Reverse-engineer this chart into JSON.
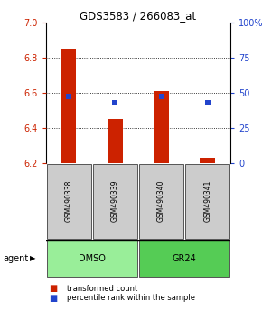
{
  "title": "GDS3583 / 266083_at",
  "samples": [
    "GSM490338",
    "GSM490339",
    "GSM490340",
    "GSM490341"
  ],
  "bar_bottoms": [
    6.2,
    6.2,
    6.2,
    6.2
  ],
  "bar_tops": [
    6.85,
    6.45,
    6.61,
    6.23
  ],
  "bar_color": "#cc2200",
  "bar_width": 0.32,
  "percentile_values": [
    47,
    43,
    47,
    43
  ],
  "percentile_color": "#2244cc",
  "ylim_left": [
    6.2,
    7.0
  ],
  "ylim_right": [
    0,
    100
  ],
  "yticks_left": [
    6.2,
    6.4,
    6.6,
    6.8,
    7.0
  ],
  "yticks_right": [
    0,
    25,
    50,
    75,
    100
  ],
  "ytick_labels_right": [
    "0",
    "25",
    "50",
    "75",
    "100%"
  ],
  "groups": [
    {
      "label": "DMSO",
      "indices": [
        0,
        1
      ],
      "color": "#99ee99"
    },
    {
      "label": "GR24",
      "indices": [
        2,
        3
      ],
      "color": "#55cc55"
    }
  ],
  "group_label": "agent",
  "legend_items": [
    {
      "label": "transformed count",
      "color": "#cc2200"
    },
    {
      "label": "percentile rank within the sample",
      "color": "#2244cc"
    }
  ],
  "sample_box_color": "#cccccc",
  "tick_color_left": "#cc2200",
  "tick_color_right": "#2244cc"
}
